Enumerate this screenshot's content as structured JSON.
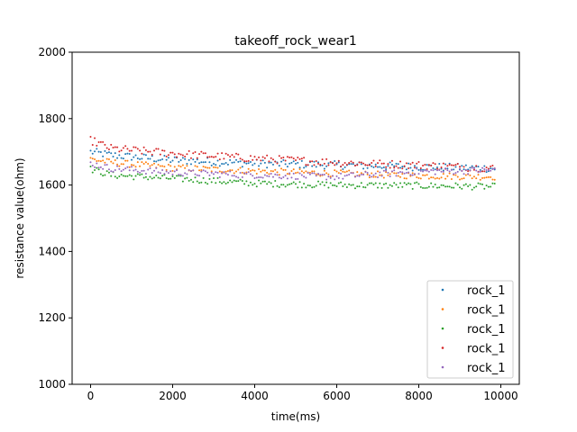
{
  "chart_data": {
    "type": "scatter",
    "title": "takeoff_rock_wear1",
    "xlabel": "time(ms)",
    "ylabel": "resistance value(ohm)",
    "xlim": [
      -450,
      10450
    ],
    "ylim": [
      1000,
      2000
    ],
    "xticks": [
      0,
      2000,
      4000,
      6000,
      8000,
      10000
    ],
    "yticks": [
      1000,
      1200,
      1400,
      1600,
      1800,
      2000
    ],
    "x_start": 0,
    "x_end": 9850,
    "x_step": 50,
    "legend_position": "lower right",
    "grid": false,
    "series": [
      {
        "name": "rock_1",
        "color": "#1f77b4",
        "trend": [
          [
            0,
            1700
          ],
          [
            500,
            1690
          ],
          [
            2000,
            1675
          ],
          [
            4000,
            1665
          ],
          [
            6000,
            1660
          ],
          [
            8000,
            1655
          ],
          [
            9850,
            1650
          ]
        ],
        "jitter": 12
      },
      {
        "name": "rock_1",
        "color": "#ff7f0e",
        "trend": [
          [
            0,
            1678
          ],
          [
            500,
            1668
          ],
          [
            2000,
            1652
          ],
          [
            4000,
            1642
          ],
          [
            6000,
            1635
          ],
          [
            8000,
            1628
          ],
          [
            9850,
            1625
          ]
        ],
        "jitter": 10
      },
      {
        "name": "rock_1",
        "color": "#2ca02c",
        "trend": [
          [
            0,
            1648
          ],
          [
            500,
            1630
          ],
          [
            2000,
            1620
          ],
          [
            4000,
            1605
          ],
          [
            6000,
            1600
          ],
          [
            8000,
            1598
          ],
          [
            9850,
            1595
          ]
        ],
        "jitter": 10
      },
      {
        "name": "rock_1",
        "color": "#d62728",
        "trend": [
          [
            0,
            1735
          ],
          [
            500,
            1710
          ],
          [
            2000,
            1695
          ],
          [
            4000,
            1680
          ],
          [
            6000,
            1668
          ],
          [
            8000,
            1660
          ],
          [
            9850,
            1650
          ]
        ],
        "jitter": 12
      },
      {
        "name": "rock_1",
        "color": "#9467bd",
        "trend": [
          [
            0,
            1665
          ],
          [
            500,
            1650
          ],
          [
            2000,
            1638
          ],
          [
            4000,
            1630
          ],
          [
            6000,
            1625
          ],
          [
            8000,
            1640
          ],
          [
            9850,
            1645
          ]
        ],
        "jitter": 10
      }
    ]
  }
}
